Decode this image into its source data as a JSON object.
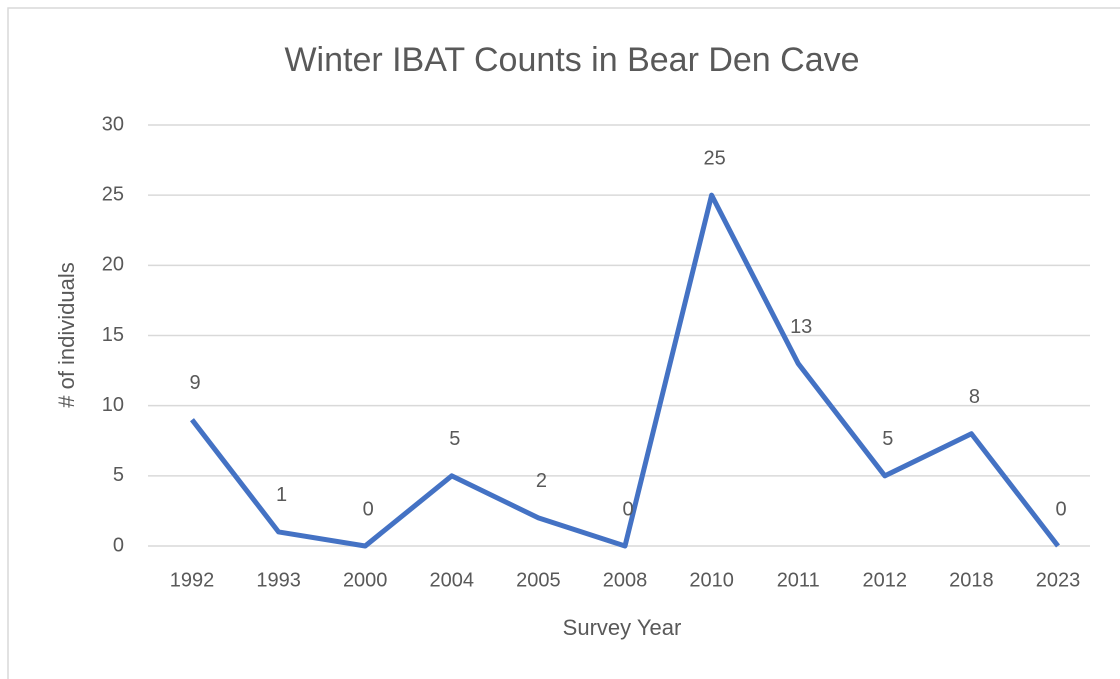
{
  "chart_data": {
    "type": "line",
    "title": "Winter IBAT Counts in Bear Den Cave",
    "x_label": "Survey Year",
    "y_label": "# of individuals",
    "categories": [
      "1992",
      "1993",
      "2000",
      "2004",
      "2005",
      "2008",
      "2010",
      "2011",
      "2012",
      "2018",
      "2023"
    ],
    "series": [
      {
        "name": "Winter IBAT Counts",
        "color": "#4472c4",
        "values": [
          9,
          1,
          0,
          5,
          2,
          0,
          25,
          13,
          5,
          8,
          0
        ]
      }
    ],
    "ylim": [
      0,
      30
    ],
    "yticks": [
      0,
      5,
      10,
      15,
      20,
      25,
      30
    ],
    "grid": true
  }
}
